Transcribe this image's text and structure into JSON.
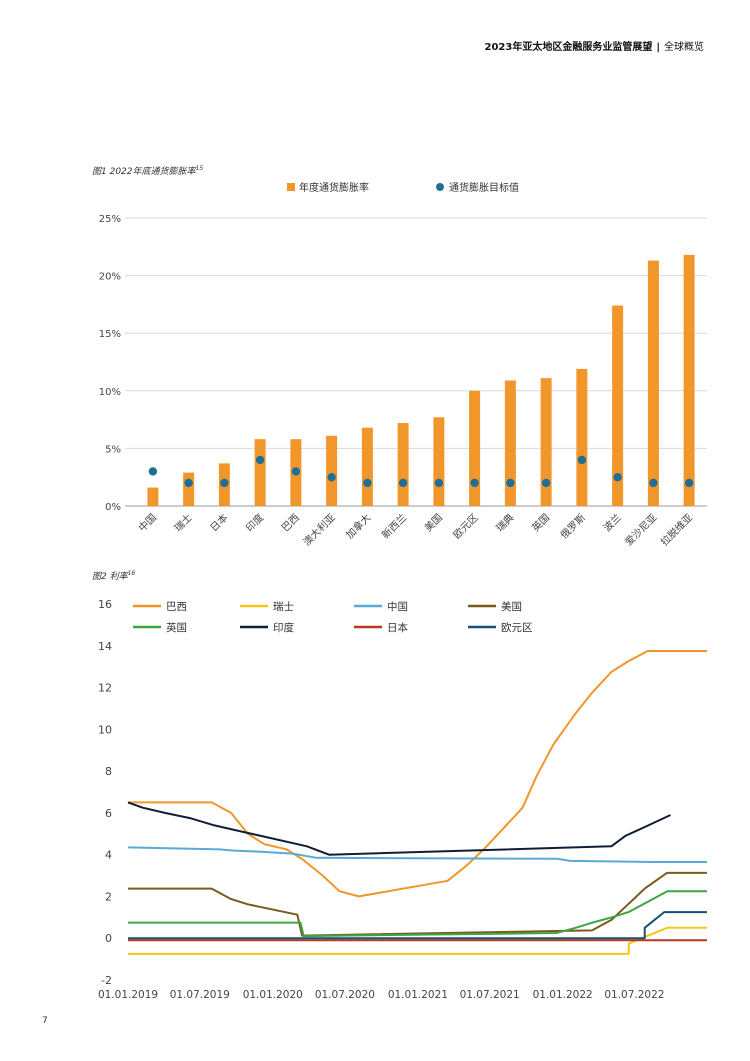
{
  "header": {
    "title": "2023年亚太地区金融服务业监管展望",
    "separator": "|",
    "section": "全球概览"
  },
  "page_number": "7",
  "colors": {
    "orange": "#F0962B",
    "navy_dot": "#1F6E98",
    "grid": "#d9d9d9",
    "axis_text": "#444444"
  },
  "figure1": {
    "caption": "图1 2022年底通货膨胀率",
    "footnote": "15"
  },
  "figure2": {
    "caption": "图2 利率",
    "footnote": "16"
  },
  "chart_data": [
    {
      "type": "bar",
      "title": "图1 2022年底通货膨胀率",
      "legend_position": "top",
      "grid": true,
      "ylim": [
        0,
        25
      ],
      "y_ticks": [
        "0%",
        "5%",
        "10%",
        "15%",
        "20%",
        "25%"
      ],
      "categories": [
        "中国",
        "瑞士",
        "日本",
        "印度",
        "巴西",
        "澳大利亚",
        "加拿大",
        "新西兰",
        "美国",
        "欧元区",
        "瑞典",
        "英国",
        "俄罗斯",
        "波兰",
        "爱沙尼亚",
        "拉脱维亚"
      ],
      "series": [
        {
          "name": "年度通货膨胀率",
          "kind": "bar",
          "color": "#F0962B",
          "values": [
            1.6,
            2.9,
            3.7,
            5.8,
            5.8,
            6.1,
            6.8,
            7.2,
            7.7,
            10.0,
            10.9,
            11.1,
            11.9,
            17.4,
            21.3,
            21.8
          ]
        },
        {
          "name": "通货膨胀目标值",
          "kind": "dot",
          "color": "#1F6E98",
          "values": [
            3,
            2,
            2,
            4,
            3,
            2.5,
            2,
            2,
            2,
            2,
            2,
            2,
            4,
            2.5,
            2,
            2
          ]
        }
      ]
    },
    {
      "type": "line",
      "title": "图2 利率",
      "legend_position": "top",
      "grid": false,
      "ylim": [
        -2,
        16
      ],
      "y_ticks": [
        "16",
        "14",
        "12",
        "10",
        "8",
        "6",
        "4",
        "2",
        "0",
        "-2"
      ],
      "x_range": [
        "2019-01-01",
        "2022-12-31"
      ],
      "x_ticks": [
        {
          "date": "2019-01-01",
          "label": "01.01.2019"
        },
        {
          "date": "2019-07-01",
          "label": "01.07.2019"
        },
        {
          "date": "2020-01-01",
          "label": "01.01.2020"
        },
        {
          "date": "2020-07-01",
          "label": "01.07.2020"
        },
        {
          "date": "2021-01-01",
          "label": "01.01.2021"
        },
        {
          "date": "2021-07-01",
          "label": "01.07.2021"
        },
        {
          "date": "2022-01-01",
          "label": "01.01.2022"
        },
        {
          "date": "2022-07-01",
          "label": "01.07.2022"
        }
      ],
      "series": [
        {
          "name": "巴西",
          "color": "#F0962B",
          "points": [
            [
              "2019-01-01",
              6.5
            ],
            [
              "2019-07-31",
              6.5
            ],
            [
              "2019-09-18",
              6.0
            ],
            [
              "2019-10-30",
              5.0
            ],
            [
              "2019-12-11",
              4.5
            ],
            [
              "2020-02-05",
              4.25
            ],
            [
              "2020-03-18",
              3.75
            ],
            [
              "2020-05-06",
              3.0
            ],
            [
              "2020-06-17",
              2.25
            ],
            [
              "2020-08-05",
              2.0
            ],
            [
              "2021-03-17",
              2.75
            ],
            [
              "2021-05-05",
              3.5
            ],
            [
              "2021-06-16",
              4.25
            ],
            [
              "2021-08-04",
              5.25
            ],
            [
              "2021-09-22",
              6.25
            ],
            [
              "2021-10-27",
              7.75
            ],
            [
              "2021-12-08",
              9.25
            ],
            [
              "2022-02-02",
              10.75
            ],
            [
              "2022-03-16",
              11.75
            ],
            [
              "2022-05-04",
              12.75
            ],
            [
              "2022-06-15",
              13.25
            ],
            [
              "2022-08-03",
              13.75
            ],
            [
              "2022-12-31",
              13.75
            ]
          ]
        },
        {
          "name": "瑞士",
          "color": "#F5C518",
          "points": [
            [
              "2019-01-01",
              -0.75
            ],
            [
              "2022-06-16",
              -0.75
            ],
            [
              "2022-06-17",
              -0.25
            ],
            [
              "2022-09-22",
              0.5
            ],
            [
              "2022-12-31",
              0.5
            ]
          ]
        },
        {
          "name": "中国",
          "color": "#5AA9D6",
          "points": [
            [
              "2019-01-01",
              4.35
            ],
            [
              "2019-08-20",
              4.25
            ],
            [
              "2019-09-20",
              4.2
            ],
            [
              "2019-11-20",
              4.15
            ],
            [
              "2020-02-20",
              4.05
            ],
            [
              "2020-04-20",
              3.85
            ],
            [
              "2021-12-20",
              3.8
            ],
            [
              "2022-01-20",
              3.7
            ],
            [
              "2022-08-22",
              3.65
            ],
            [
              "2022-12-31",
              3.65
            ]
          ]
        },
        {
          "name": "美国",
          "color": "#7B5A1E",
          "points": [
            [
              "2019-01-01",
              2.375
            ],
            [
              "2019-07-31",
              2.375
            ],
            [
              "2019-09-18",
              1.875
            ],
            [
              "2019-10-30",
              1.625
            ],
            [
              "2020-03-03",
              1.125
            ],
            [
              "2020-03-15",
              0.125
            ],
            [
              "2022-03-16",
              0.375
            ],
            [
              "2022-05-04",
              0.875
            ],
            [
              "2022-06-15",
              1.625
            ],
            [
              "2022-07-27",
              2.375
            ],
            [
              "2022-09-21",
              3.125
            ],
            [
              "2022-11-02",
              3.125
            ],
            [
              "2022-12-31",
              3.125
            ]
          ]
        },
        {
          "name": "英国",
          "color": "#3DA642",
          "points": [
            [
              "2019-01-01",
              0.75
            ],
            [
              "2020-03-11",
              0.75
            ],
            [
              "2020-03-19",
              0.1
            ],
            [
              "2021-12-16",
              0.25
            ],
            [
              "2022-02-03",
              0.5
            ],
            [
              "2022-03-17",
              0.75
            ],
            [
              "2022-05-05",
              1.0
            ],
            [
              "2022-06-16",
              1.25
            ],
            [
              "2022-08-04",
              1.75
            ],
            [
              "2022-09-22",
              2.25
            ],
            [
              "2022-12-31",
              2.25
            ]
          ]
        },
        {
          "name": "印度",
          "color": "#0F1E36",
          "points": [
            [
              "2019-01-01",
              6.5
            ],
            [
              "2019-02-07",
              6.25
            ],
            [
              "2019-04-04",
              6.0
            ],
            [
              "2019-06-06",
              5.75
            ],
            [
              "2019-08-07",
              5.4
            ],
            [
              "2019-10-04",
              5.15
            ],
            [
              "2020-03-27",
              4.4
            ],
            [
              "2020-05-22",
              4.0
            ],
            [
              "2022-05-04",
              4.4
            ],
            [
              "2022-06-08",
              4.9
            ],
            [
              "2022-08-05",
              5.4
            ],
            [
              "2022-09-30",
              5.9
            ]
          ]
        },
        {
          "name": "日本",
          "color": "#B23A1E",
          "points": [
            [
              "2019-01-01",
              -0.1
            ],
            [
              "2022-12-31",
              -0.1
            ]
          ]
        },
        {
          "name": "欧元区",
          "color": "#1B4F72",
          "points": [
            [
              "2019-01-01",
              0.0
            ],
            [
              "2022-07-27",
              0.0
            ],
            [
              "2022-07-27",
              0.5
            ],
            [
              "2022-09-14",
              1.25
            ],
            [
              "2022-12-31",
              1.25
            ]
          ]
        }
      ]
    }
  ]
}
